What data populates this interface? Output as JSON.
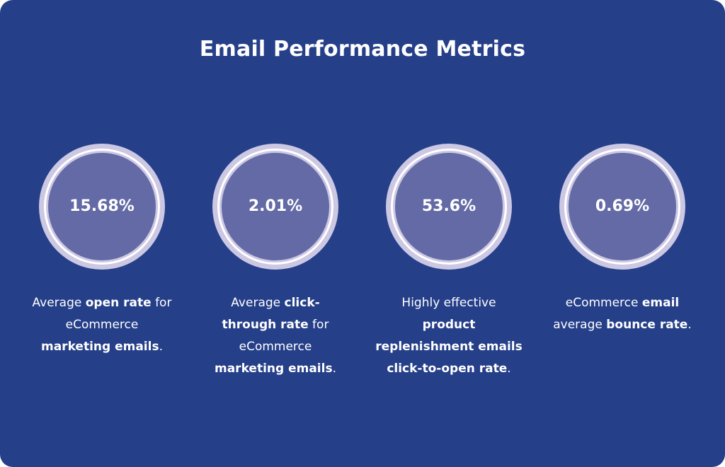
{
  "title": "Email Performance Metrics",
  "colors": {
    "background": "#253f89",
    "ring_outer": "#ccc8e4",
    "ring_core": "#636aa5",
    "text": "#ffffff"
  },
  "metrics": [
    {
      "value": "15.68%",
      "lines": [
        [
          {
            "t": "Average ",
            "b": false
          },
          {
            "t": "open rate",
            "b": true
          },
          {
            "t": " for",
            "b": false
          }
        ],
        [
          {
            "t": "eCommerce",
            "b": false
          }
        ],
        [
          {
            "t": "marketing emails",
            "b": true
          },
          {
            "t": ".",
            "b": false
          }
        ]
      ]
    },
    {
      "value": "2.01%",
      "lines": [
        [
          {
            "t": "Average ",
            "b": false
          },
          {
            "t": "click-",
            "b": true
          }
        ],
        [
          {
            "t": "through rate",
            "b": true
          },
          {
            "t": " for",
            "b": false
          }
        ],
        [
          {
            "t": "eCommerce",
            "b": false
          }
        ],
        [
          {
            "t": "marketing emails",
            "b": true
          },
          {
            "t": ".",
            "b": false
          }
        ]
      ]
    },
    {
      "value": "53.6%",
      "lines": [
        [
          {
            "t": "Highly effective",
            "b": false
          }
        ],
        [
          {
            "t": "product",
            "b": true
          }
        ],
        [
          {
            "t": "replenishment emails",
            "b": true
          }
        ],
        [
          {
            "t": "click-to-open rate",
            "b": true
          },
          {
            "t": ".",
            "b": false
          }
        ]
      ]
    },
    {
      "value": "0.69%",
      "lines": [
        [
          {
            "t": "eCommerce ",
            "b": false
          },
          {
            "t": "email",
            "b": true
          }
        ],
        [
          {
            "t": "average ",
            "b": false
          },
          {
            "t": "bounce rate",
            "b": true
          },
          {
            "t": ".",
            "b": false
          }
        ]
      ]
    }
  ]
}
